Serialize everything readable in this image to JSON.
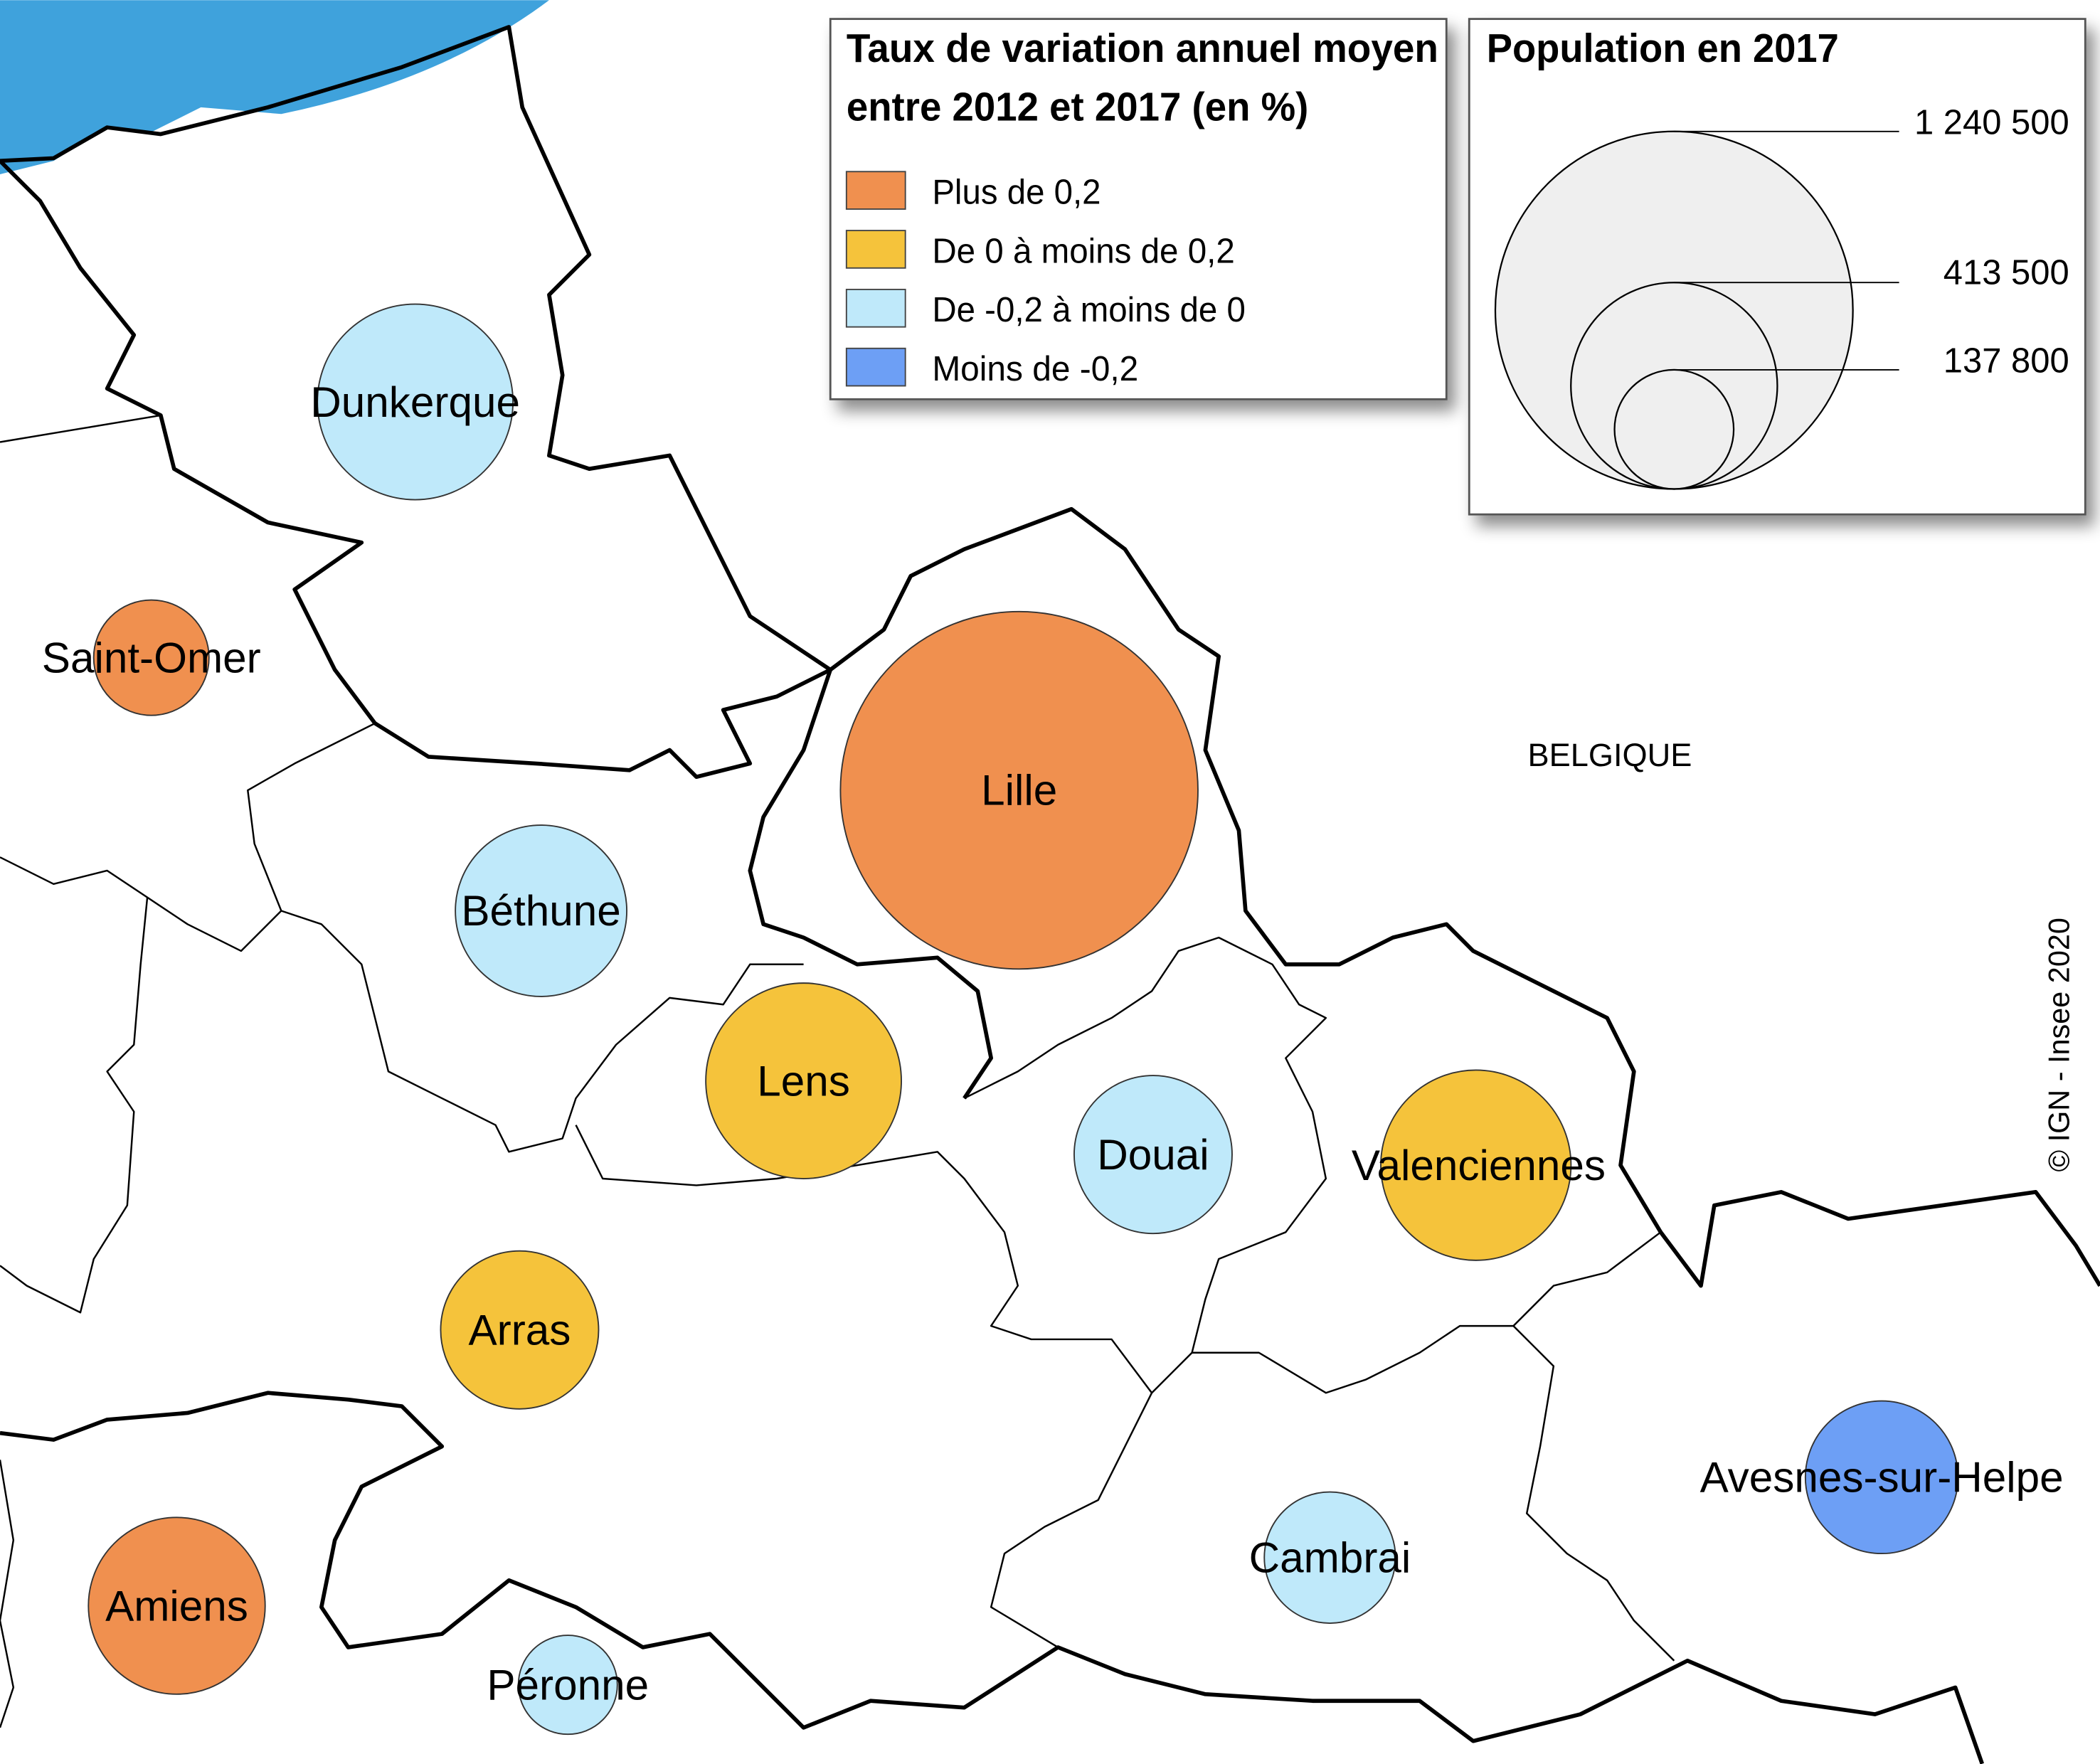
{
  "legend_color": {
    "title_lines": [
      "Taux de variation annuel moyen",
      "entre 2012 et 2017 (en %)"
    ],
    "classes": [
      {
        "label": "Plus de 0,2",
        "color": "#f0904f"
      },
      {
        "label": "De 0 à moins de 0,2",
        "color": "#f5c33b"
      },
      {
        "label": "De -0,2 à moins de 0",
        "color": "#bfe9fa"
      },
      {
        "label": "Moins de -0,2",
        "color": "#6d9ff5"
      }
    ]
  },
  "legend_size": {
    "title": "Population en 2017",
    "ticks": [
      {
        "value": 1240500,
        "label": "1 240 500"
      },
      {
        "value": 413500,
        "label": "413 500"
      },
      {
        "value": 137800,
        "label": "137 800"
      }
    ]
  },
  "cities": [
    {
      "name": "Dunkerque",
      "class": 2,
      "population": 371000
    },
    {
      "name": "Saint-Omer",
      "class": 0,
      "population": 129000
    },
    {
      "name": "Lille",
      "class": 0,
      "population": 1240000
    },
    {
      "name": "Béthune",
      "class": 2,
      "population": 285000
    },
    {
      "name": "Lens",
      "class": 1,
      "population": 371000
    },
    {
      "name": "Douai",
      "class": 2,
      "population": 242000
    },
    {
      "name": "Valenciennes",
      "class": 1,
      "population": 351000
    },
    {
      "name": "Arras",
      "class": 1,
      "population": 242000
    },
    {
      "name": "Avesnes-sur-Helpe",
      "class": 3,
      "population": 226000
    },
    {
      "name": "Cambrai",
      "class": 2,
      "population": 167000
    },
    {
      "name": "Amiens",
      "class": 0,
      "population": 303000
    },
    {
      "name": "Péronne",
      "class": 2,
      "population": 95000
    }
  ],
  "country_label": "BELGIQUE",
  "credit": "© IGN - Insee 2020"
}
